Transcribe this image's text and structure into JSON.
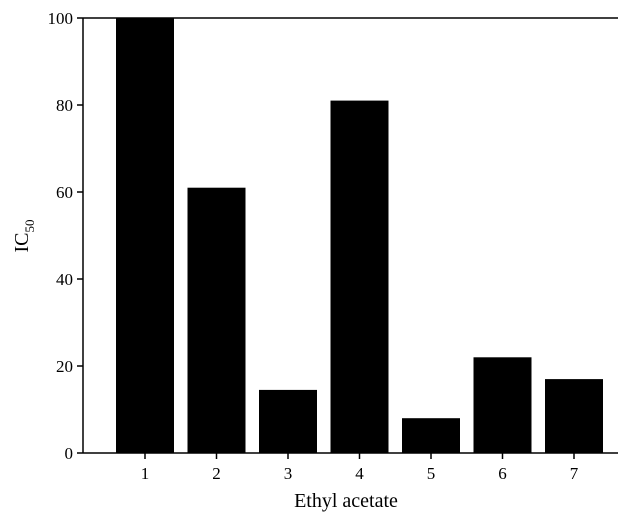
{
  "chart_data": {
    "type": "bar",
    "title": "",
    "xlabel": "Ethyl acetate",
    "ylabel": {
      "main": "IC",
      "sub": "50"
    },
    "categories": [
      "1",
      "2",
      "3",
      "4",
      "5",
      "6",
      "7"
    ],
    "series": [
      {
        "values": [
          100,
          61,
          14.5,
          81,
          8,
          22,
          17
        ]
      }
    ],
    "ylim": [
      0,
      100
    ],
    "yticks": [
      0,
      20,
      40,
      60,
      80,
      100
    ],
    "ytick_labels": [
      "0",
      "20",
      "40",
      "60",
      "80",
      "100"
    ],
    "grid": false,
    "legend": "none",
    "bar_color": "#000000"
  }
}
